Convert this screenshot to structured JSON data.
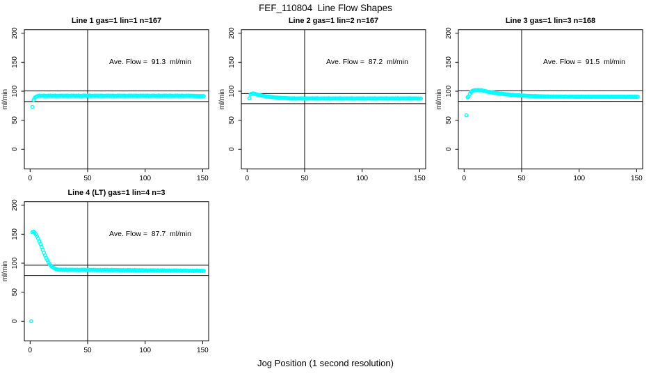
{
  "figure_title": "FEF_110804  Line Flow Shapes",
  "figure_xlabel": "Jog Position (1 second resolution)",
  "colors": {
    "marker": "#00FFFF",
    "axis": "#000000",
    "background": "#FFFFFF",
    "text": "#000000"
  },
  "axes": {
    "x_ticks": [
      0,
      50,
      100,
      150
    ],
    "y_ticks": [
      0,
      50,
      100,
      150,
      200
    ],
    "xlim": [
      -5,
      155
    ],
    "ylim": [
      -34,
      206
    ],
    "ylabel": "ml/min",
    "vline_x": 50,
    "grid": false
  },
  "chart_data": [
    {
      "type": "scatter",
      "title": "Line 1 gas=1 lin=1 n=167",
      "annotation": "Ave. Flow =  91.3  ml/min",
      "ave_flow": 91.3,
      "ref_lines": {
        "upper": 100.4,
        "lower": 82.2
      },
      "marker": "open-circle",
      "x_start": 2,
      "x_step": 1,
      "y": [
        73,
        85,
        88.5,
        90.3,
        91.2,
        92,
        92.5,
        91.6,
        92.3,
        91.8,
        92.6,
        91.5,
        92.2,
        91.7,
        92.4,
        92.0,
        92.5,
        91.6,
        92.3,
        91.8,
        92.6,
        91.5,
        92.2,
        91.7,
        92.4,
        92.0,
        92.5,
        91.6,
        92.3,
        91.8,
        92.6,
        91.5,
        92.2,
        91.7,
        92.4,
        92.0,
        92.5,
        91.6,
        92.3,
        91.8,
        92.6,
        91.5,
        92.2,
        91.7,
        92.4,
        92.0,
        92.5,
        91.6,
        92.3,
        91.8,
        92.6,
        91.5,
        92.2,
        91.7,
        92.4,
        92.0,
        92.5,
        91.6,
        92.3,
        91.8,
        92.6,
        91.5,
        92.2,
        91.7,
        92.4,
        92.0,
        92.5,
        91.6,
        92.3,
        91.8,
        92.6,
        91.5,
        92.2,
        91.7,
        92.4,
        92.0,
        92.5,
        91.6,
        92.3,
        91.8,
        92.6,
        91.5,
        92.2,
        91.7,
        92.4,
        92.0,
        92.5,
        91.6,
        92.3,
        91.8,
        92.6,
        91.5,
        92.2,
        91.7,
        92.4,
        92.0,
        92.5,
        91.6,
        92.3,
        91.8,
        92.6,
        91.5,
        92.2,
        91.7,
        92.4,
        92.0,
        92.5,
        91.6,
        92.3,
        91.8,
        92.6,
        91.5,
        92.2,
        91.7,
        92.4,
        92.0,
        92.5,
        91.6,
        92.3,
        91.8,
        92.6,
        91.5,
        92.2,
        91.7,
        92.4,
        92.0,
        92.5,
        91.6,
        92.3,
        91.8,
        92.6,
        91.5,
        92.2,
        91.7,
        92.4,
        92.0,
        92.5,
        91.6,
        92.3,
        91.8,
        92.1,
        91.5,
        92.0,
        91.4,
        91.9,
        91.3,
        91.8,
        91.4,
        91.7,
        91.5
      ]
    },
    {
      "type": "scatter",
      "title": "Line 2 gas=1 lin=2 n=167",
      "annotation": "Ave. Flow =  87.2  ml/min",
      "ave_flow": 87.2,
      "ref_lines": {
        "upper": 95.9,
        "lower": 78.5
      },
      "marker": "open-circle",
      "x_start": 2,
      "x_step": 1,
      "y": [
        88,
        94.5,
        95.8,
        96.2,
        96.0,
        95.3,
        94.7,
        94.1,
        93.6,
        93.1,
        92.7,
        92.3,
        91.9,
        91.6,
        91.3,
        91.0,
        90.7,
        90.5,
        90.2,
        90.0,
        89.8,
        89.6,
        89.4,
        89.2,
        89.1,
        88.9,
        88.8,
        88.6,
        88.5,
        88.4,
        88.3,
        88.2,
        88.1,
        88.0,
        87.4,
        87.8,
        87.1,
        87.6,
        87.2,
        87.9,
        87.0,
        87.5,
        87.3,
        87.7,
        87.4,
        87.8,
        87.1,
        87.6,
        87.2,
        87.9,
        87.0,
        87.5,
        87.3,
        87.7,
        87.4,
        87.8,
        87.1,
        87.6,
        87.2,
        87.9,
        87.0,
        87.5,
        87.3,
        87.7,
        87.4,
        87.8,
        87.1,
        87.6,
        87.2,
        87.9,
        87.0,
        87.5,
        87.3,
        87.7,
        87.4,
        87.8,
        87.1,
        87.6,
        87.2,
        87.9,
        87.0,
        87.5,
        87.3,
        87.7,
        87.4,
        87.8,
        87.1,
        87.6,
        87.2,
        87.9,
        87.0,
        87.5,
        87.3,
        87.7,
        87.4,
        87.8,
        87.1,
        87.6,
        87.2,
        87.9,
        87.0,
        87.5,
        87.3,
        87.7,
        87.4,
        87.8,
        87.1,
        87.6,
        87.2,
        87.9,
        87.0,
        87.5,
        87.3,
        87.7,
        87.4,
        87.8,
        87.1,
        87.6,
        87.2,
        87.9,
        87.0,
        87.5,
        87.3,
        87.7,
        87.4,
        87.8,
        87.1,
        87.6,
        87.2,
        87.9,
        87.0,
        87.5,
        87.3,
        87.7,
        87.4,
        87.8,
        87.1,
        87.6,
        87.2,
        87.9,
        87.0,
        87.5,
        87.3,
        87.7,
        87.4,
        87.7,
        87.1,
        87.5,
        87.2,
        87.6
      ]
    },
    {
      "type": "scatter",
      "title": "Line 3 gas=1 lin=3 n=168",
      "annotation": "Ave. Flow =  91.5  ml/min",
      "ave_flow": 91.5,
      "ref_lines": {
        "upper": 100.7,
        "lower": 82.4
      },
      "marker": "open-circle",
      "x_start": 2,
      "x_step": 1,
      "y": [
        58.5,
        89.5,
        91.0,
        95.5,
        98.5,
        100.3,
        101.2,
        101.6,
        101.9,
        101.5,
        102.0,
        101.6,
        101.9,
        101.7,
        101.3,
        100.3,
        100.5,
        99.6,
        99.5,
        98.7,
        98.9,
        98.2,
        98.1,
        97.4,
        97.5,
        96.7,
        97.0,
        96.2,
        96.3,
        95.6,
        96.0,
        95.3,
        95.4,
        94.8,
        95.0,
        94.3,
        94.7,
        94.0,
        94.1,
        93.5,
        94.0,
        93.4,
        93.5,
        93.0,
        93.2,
        92.6,
        93.1,
        92.4,
        92.6,
        92.1,
        92.6,
        92.1,
        92.3,
        91.8,
        92.1,
        91.5,
        92.0,
        91.5,
        91.7,
        91.2,
        91.8,
        91.3,
        91.6,
        91.1,
        91.4,
        90.9,
        91.4,
        90.9,
        91.1,
        90.7,
        91.3,
        90.8,
        91.1,
        90.7,
        91.0,
        90.5,
        91.1,
        90.6,
        90.9,
        90.4,
        91.0,
        90.6,
        90.9,
        90.4,
        90.8,
        90.3,
        90.9,
        90.4,
        90.7,
        90.3,
        90.9,
        90.5,
        90.8,
        90.4,
        90.7,
        90.2,
        90.8,
        90.3,
        90.6,
        90.2,
        90.8,
        90.4,
        90.7,
        90.3,
        90.7,
        90.2,
        90.8,
        90.3,
        90.6,
        90.2,
        90.8,
        90.4,
        90.7,
        90.3,
        90.7,
        90.2,
        90.8,
        90.3,
        90.6,
        90.2,
        90.8,
        90.3,
        90.6,
        90.3,
        90.7,
        90.2,
        90.7,
        90.3,
        90.6,
        90.2,
        90.7,
        90.3,
        90.6,
        90.3,
        90.6,
        90.2,
        90.7,
        90.3,
        90.5,
        90.1,
        90.7,
        90.3,
        90.6,
        90.2,
        90.6,
        90.1,
        90.6,
        90.2,
        90.5,
        90.3
      ]
    },
    {
      "type": "scatter",
      "title": "Line 4 (LT) gas=1 lin=4 n=3",
      "annotation": "Ave. Flow =  87.7  ml/min",
      "ave_flow": 87.7,
      "ref_lines": {
        "upper": 96.5,
        "lower": 78.9
      },
      "marker": "open-circle",
      "x_start": 1,
      "x_step": 1,
      "y": [
        0,
        153.5,
        154.5,
        152.5,
        150,
        146.5,
        142.5,
        138,
        133,
        128,
        123,
        118,
        113.5,
        109,
        105,
        101.5,
        98.5,
        96,
        94,
        92.5,
        91.3,
        90.3,
        89.6,
        89.1,
        88.8,
        88.6,
        89.0,
        88.3,
        88.8,
        88.4,
        89.0,
        88.2,
        88.7,
        88.5,
        88.9,
        88.5,
        88.9,
        88.2,
        88.7,
        88.3,
        88.9,
        88.1,
        88.6,
        88.4,
        88.8,
        88.4,
        88.8,
        88.1,
        88.6,
        88.2,
        88.8,
        88.0,
        88.5,
        88.3,
        88.7,
        88.2,
        88.6,
        87.9,
        88.4,
        88.0,
        88.6,
        87.8,
        88.3,
        88.1,
        88.5,
        88.1,
        88.5,
        87.8,
        88.3,
        87.9,
        88.5,
        87.7,
        88.2,
        88.0,
        88.4,
        87.9,
        88.3,
        87.6,
        88.1,
        87.7,
        88.3,
        87.5,
        88.0,
        87.8,
        88.2,
        87.8,
        88.2,
        87.5,
        88.0,
        87.6,
        88.2,
        87.4,
        87.9,
        87.7,
        88.1,
        87.6,
        88.0,
        87.3,
        87.8,
        87.4,
        88.0,
        87.2,
        87.7,
        87.5,
        87.9,
        87.5,
        87.9,
        87.2,
        87.7,
        87.3,
        87.9,
        87.1,
        87.6,
        87.4,
        87.8,
        87.3,
        87.7,
        87.0,
        87.5,
        87.1,
        87.7,
        86.9,
        87.4,
        87.2,
        87.6,
        87.2,
        87.6,
        86.9,
        87.4,
        87.0,
        87.6,
        86.8,
        87.3,
        87.1,
        87.5,
        87.0,
        87.4,
        86.7,
        87.2,
        86.8,
        87.4,
        86.6,
        87.1,
        86.9,
        87.3,
        86.8,
        87.1,
        86.6,
        87.0,
        86.7,
        86.9
      ]
    }
  ]
}
